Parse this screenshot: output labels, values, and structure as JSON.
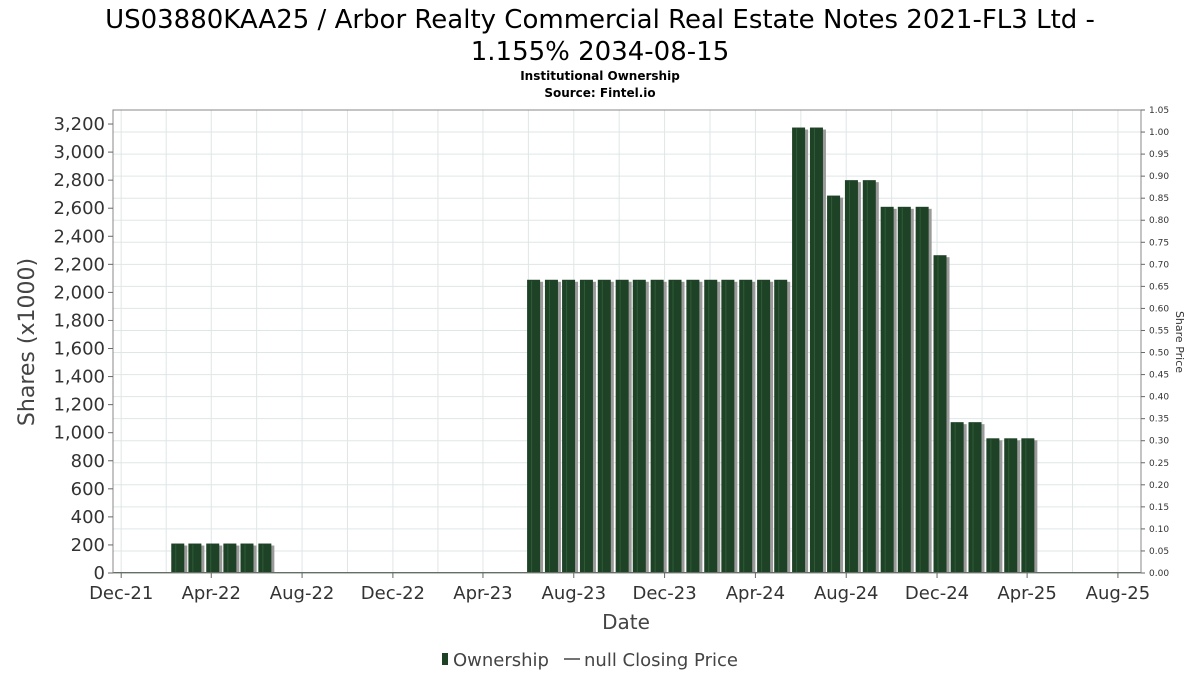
{
  "chart_data": {
    "type": "bar",
    "title_line1": "US03880KAA25 / Arbor Realty Commercial Real Estate Notes 2021-FL3 Ltd -",
    "title_line2": "1.155% 2034-08-15",
    "subtitle": "Institutional Ownership",
    "source": "Source: Fintel.io",
    "xlabel": "Date",
    "ylabel": "Shares (x1000)",
    "y2label": "Share Price",
    "ylim": [
      0,
      3300
    ],
    "y_ticks": [
      0,
      200,
      400,
      600,
      800,
      1000,
      1200,
      1400,
      1600,
      1800,
      2000,
      2200,
      2400,
      2600,
      2800,
      3000,
      3200
    ],
    "y_tick_labels": [
      "0",
      "200",
      "400",
      "600",
      "800",
      "1,000",
      "1,200",
      "1,400",
      "1,600",
      "1,800",
      "2,000",
      "2,200",
      "2,400",
      "2,600",
      "2,800",
      "3,000",
      "3,200"
    ],
    "y2lim": [
      0,
      1.05
    ],
    "y2_tick_labels": [
      "0.00",
      "0.05",
      "0.10",
      "0.15",
      "0.20",
      "0.25",
      "0.30",
      "0.35",
      "0.40",
      "0.45",
      "0.50",
      "0.55",
      "0.60",
      "0.65",
      "0.70",
      "0.75",
      "0.80",
      "0.85",
      "0.90",
      "0.95",
      "1.00",
      "1.05"
    ],
    "x_ticks": [
      "2021-12-01",
      "2022-04-01",
      "2022-08-01",
      "2022-12-01",
      "2023-04-01",
      "2023-08-01",
      "2023-12-01",
      "2024-04-01",
      "2024-08-01",
      "2024-12-01",
      "2025-04-01",
      "2025-08-01"
    ],
    "x_tick_labels": [
      "Dec-21",
      "Apr-22",
      "Aug-22",
      "Dec-22",
      "Apr-23",
      "Aug-23",
      "Dec-23",
      "Apr-24",
      "Aug-24",
      "Dec-24",
      "Apr-25",
      "Aug-25"
    ],
    "xlim": [
      "2021-11-20",
      "2025-09-01"
    ],
    "grid": true,
    "legend_position": "bottom-center",
    "series": [
      {
        "name": "Ownership",
        "color": "#1e4226",
        "x": [
          "2022-02-15",
          "2022-03-10",
          "2022-04-03",
          "2022-04-26",
          "2022-05-19",
          "2022-06-12",
          "2022-07-06",
          "2023-05-15",
          "2023-06-08",
          "2023-07-02",
          "2023-07-25",
          "2023-08-18",
          "2023-09-11",
          "2023-10-05",
          "2023-10-28",
          "2023-11-21",
          "2023-12-15",
          "2024-01-08",
          "2024-02-01",
          "2024-02-24",
          "2024-03-19",
          "2024-04-12",
          "2024-05-05",
          "2024-05-29",
          "2024-06-22",
          "2024-07-15",
          "2024-08-08",
          "2024-09-01",
          "2024-09-25",
          "2024-10-18",
          "2024-11-11",
          "2024-12-05",
          "2024-12-28",
          "2025-01-21",
          "2025-02-14",
          "2025-03-10",
          "2025-04-02",
          "2025-04-26",
          "2025-05-20",
          "2025-06-12"
        ],
        "values": [
          210,
          210,
          210,
          210,
          210,
          210,
          0,
          0,
          2090,
          2090,
          2090,
          2090,
          2090,
          2090,
          2090,
          2090,
          2090,
          2090,
          2090,
          2090,
          2090,
          2090,
          2090,
          3175,
          3175,
          2690,
          2800,
          2800,
          2610,
          2610,
          2610,
          2265,
          1075,
          1075,
          960,
          960,
          960,
          0,
          0,
          0
        ]
      },
      {
        "name": "null Closing Price",
        "color": "#444444",
        "values": []
      }
    ]
  }
}
